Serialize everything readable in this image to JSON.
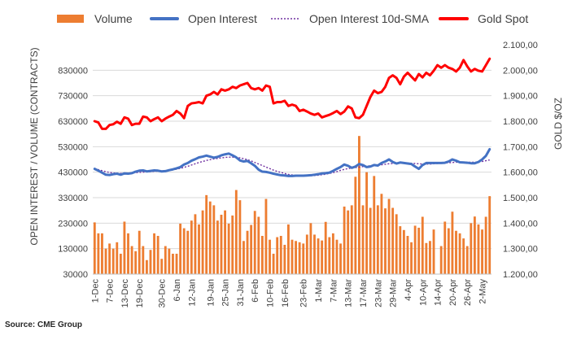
{
  "chart_data": {
    "type": "bar",
    "legend": {
      "placement": "top",
      "entries": [
        "Volume",
        "Open Interest",
        "Open Interest 10d-SMA",
        "Gold Spot"
      ]
    },
    "y_left": {
      "label": "OPEN INTEREST / VOLUME (CONTRACTS)",
      "ylim": [
        30000,
        930000
      ],
      "ticks": [
        "830000",
        "730000",
        "630000",
        "530000",
        "430000",
        "330000",
        "230000",
        "130000",
        "30000"
      ],
      "tick_values": [
        830000,
        730000,
        630000,
        530000,
        430000,
        330000,
        230000,
        130000,
        30000
      ]
    },
    "y_right": {
      "label": "GOLD $/OZ",
      "ylim": [
        1200,
        2100
      ],
      "ticks": [
        "2.100,00",
        "2.000,00",
        "1.900,00",
        "1.800,00",
        "1.700,00",
        "1.600,00",
        "1.500,00",
        "1.400,00",
        "1.300,00",
        "1.200,00"
      ],
      "tick_values": [
        2100,
        2000,
        1900,
        1800,
        1700,
        1600,
        1500,
        1400,
        1300,
        1200
      ]
    },
    "x_labels": [
      "1-Dec",
      "7-Dec",
      "13-Dec",
      "19-Dec",
      "30-Dec",
      "6-Jan",
      "12-Jan",
      "19-Jan",
      "25-Jan",
      "31-Jan",
      "6-Feb",
      "10-Feb",
      "16-Feb",
      "23-Feb",
      "1-Mar",
      "7-Mar",
      "13-Mar",
      "17-Mar",
      "23-Mar",
      "29-Mar",
      "4-Apr",
      "10-Apr",
      "14-Apr",
      "20-Apr",
      "26-Apr",
      "2-May"
    ],
    "x_label_positions": [
      0,
      4,
      8,
      12,
      18,
      22,
      26,
      31,
      35,
      39,
      43,
      47,
      51,
      56,
      60,
      64,
      68,
      72,
      76,
      80,
      84,
      88,
      92,
      96,
      100,
      104
    ],
    "n_points": 107,
    "volume": [
      233000,
      190000,
      190000,
      130000,
      150000,
      130000,
      155000,
      110000,
      236000,
      190000,
      140000,
      120000,
      200000,
      140000,
      85000,
      125000,
      190000,
      180000,
      90000,
      140000,
      130000,
      110000,
      110000,
      228000,
      210000,
      200000,
      240000,
      265000,
      225000,
      280000,
      340000,
      315000,
      300000,
      240000,
      263000,
      280000,
      228000,
      260000,
      360000,
      320000,
      160000,
      200000,
      223000,
      278000,
      255000,
      180000,
      325000,
      165000,
      110000,
      175000,
      180000,
      145000,
      225000,
      165000,
      160000,
      155000,
      150000,
      185000,
      230000,
      185000,
      170000,
      162000,
      235000,
      175000,
      190000,
      165000,
      150000,
      295000,
      280000,
      300000,
      412000,
      572000,
      300000,
      430000,
      290000,
      415000,
      300000,
      345000,
      288000,
      325000,
      290000,
      265000,
      218000,
      203000,
      180000,
      155000,
      220000,
      212000,
      255000,
      152000,
      160000,
      205000,
      30000,
      140000,
      236000,
      210000,
      275000,
      200000,
      190000,
      170000,
      140000,
      230000,
      256000,
      225000,
      205000,
      255000,
      336000
    ],
    "open_interest": [
      443000,
      436000,
      428000,
      420000,
      419000,
      422000,
      424000,
      420000,
      425000,
      424000,
      426000,
      432000,
      436000,
      437000,
      433000,
      435000,
      437000,
      436000,
      433000,
      434000,
      438000,
      441000,
      445000,
      450000,
      460000,
      466000,
      475000,
      481000,
      488000,
      491000,
      495000,
      491000,
      487000,
      490000,
      496000,
      500000,
      503000,
      496000,
      488000,
      476000,
      472000,
      474000,
      465000,
      455000,
      440000,
      432000,
      431000,
      428000,
      424000,
      421000,
      418000,
      417000,
      415000,
      415000,
      416000,
      416000,
      416000,
      417000,
      418000,
      420000,
      422000,
      425000,
      426000,
      428000,
      435000,
      443000,
      450000,
      460000,
      455000,
      447000,
      452000,
      462000,
      458000,
      450000,
      452000,
      458000,
      456000,
      466000,
      472000,
      480000,
      470000,
      464000,
      468000,
      466000,
      464000,
      462000,
      452000,
      443000,
      458000,
      466000,
      466000,
      466000,
      466000,
      466000,
      467000,
      472000,
      480000,
      475000,
      469000,
      468000,
      467000,
      465000,
      465000,
      470000,
      480000,
      494000,
      520000
    ],
    "open_interest_sma": [
      445000,
      440000,
      436000,
      432000,
      429000,
      427000,
      426000,
      425000,
      425000,
      426000,
      427000,
      428000,
      429000,
      430000,
      431000,
      432000,
      433000,
      434000,
      435000,
      436000,
      437000,
      439000,
      442000,
      445000,
      449000,
      453000,
      458000,
      463000,
      468000,
      472000,
      476000,
      479000,
      482000,
      484000,
      486000,
      488000,
      489000,
      489000,
      488000,
      486000,
      483000,
      479000,
      474000,
      468000,
      462000,
      456000,
      450000,
      444000,
      438000,
      433000,
      429000,
      425000,
      421000,
      419000,
      417000,
      416000,
      416000,
      416000,
      416000,
      417000,
      418000,
      420000,
      422000,
      425000,
      428000,
      432000,
      437000,
      441000,
      444000,
      446000,
      448000,
      450000,
      452000,
      454000,
      455000,
      456000,
      457000,
      459000,
      461000,
      463000,
      464000,
      465000,
      466000,
      466000,
      466000,
      465000,
      464000,
      463000,
      462000,
      462000,
      462000,
      463000,
      464000,
      465000,
      466000,
      467000,
      468000,
      469000,
      469000,
      469000,
      469000,
      469000,
      469000,
      470000,
      472000,
      475000,
      478000
    ],
    "gold_spot": [
      1800,
      1795,
      1770,
      1770,
      1785,
      1788,
      1798,
      1790,
      1815,
      1810,
      1785,
      1790,
      1790,
      1818,
      1815,
      1800,
      1808,
      1815,
      1800,
      1810,
      1818,
      1825,
      1840,
      1830,
      1812,
      1860,
      1870,
      1872,
      1875,
      1870,
      1900,
      1905,
      1915,
      1905,
      1925,
      1920,
      1925,
      1935,
      1930,
      1940,
      1945,
      1950,
      1930,
      1925,
      1930,
      1920,
      1940,
      1935,
      1870,
      1875,
      1875,
      1880,
      1860,
      1865,
      1860,
      1840,
      1845,
      1838,
      1830,
      1825,
      1830,
      1815,
      1820,
      1825,
      1832,
      1840,
      1828,
      1838,
      1858,
      1850,
      1815,
      1812,
      1825,
      1860,
      1895,
      1920,
      1910,
      1915,
      1935,
      1970,
      1980,
      1970,
      1945,
      1975,
      1990,
      1975,
      1960,
      1985,
      1972,
      1990,
      1980,
      1998,
      2020,
      2010,
      2020,
      2010,
      2005,
      1995,
      2010,
      2040,
      2015,
      1995,
      2005,
      1998,
      1995,
      2020,
      2045
    ],
    "colors": {
      "volume": "#ED7D31",
      "open_interest": "#4472C4",
      "open_interest_sma": "#7030A0",
      "gold_spot": "#FF0000",
      "grid": "#D9D9D9"
    },
    "grid": true,
    "source": "Source: CME Group"
  }
}
